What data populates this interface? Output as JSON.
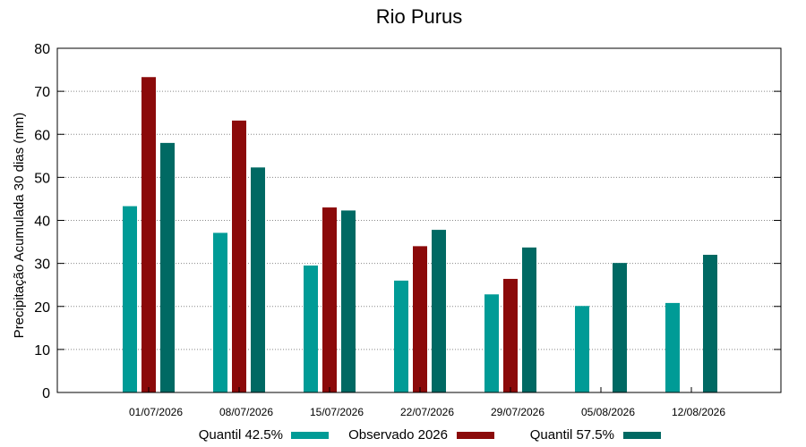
{
  "chart_data": {
    "type": "bar",
    "title": "Rio Purus",
    "xlabel": "",
    "ylabel": "Precipitação Acumulada 30 dias (mm)",
    "ylim": [
      0,
      80
    ],
    "yticks": [
      0,
      10,
      20,
      30,
      40,
      50,
      60,
      70,
      80
    ],
    "grid": true,
    "legend_position": "bottom",
    "categories": [
      "01/07/2026",
      "08/07/2026",
      "15/07/2026",
      "22/07/2026",
      "29/07/2026",
      "05/08/2026",
      "12/08/2026"
    ],
    "series": [
      {
        "name": "Quantil 42.5%",
        "color": "#009b96",
        "values": [
          43.3,
          37.1,
          29.5,
          26.0,
          22.8,
          20.1,
          20.8
        ]
      },
      {
        "name": "Observado 2026",
        "color": "#8b0a0a",
        "values": [
          73.3,
          63.2,
          43.0,
          34.0,
          26.4,
          null,
          null
        ]
      },
      {
        "name": "Quantil 57.5%",
        "color": "#006963",
        "values": [
          58.0,
          52.3,
          42.3,
          37.8,
          33.7,
          30.1,
          32.0
        ]
      }
    ]
  }
}
